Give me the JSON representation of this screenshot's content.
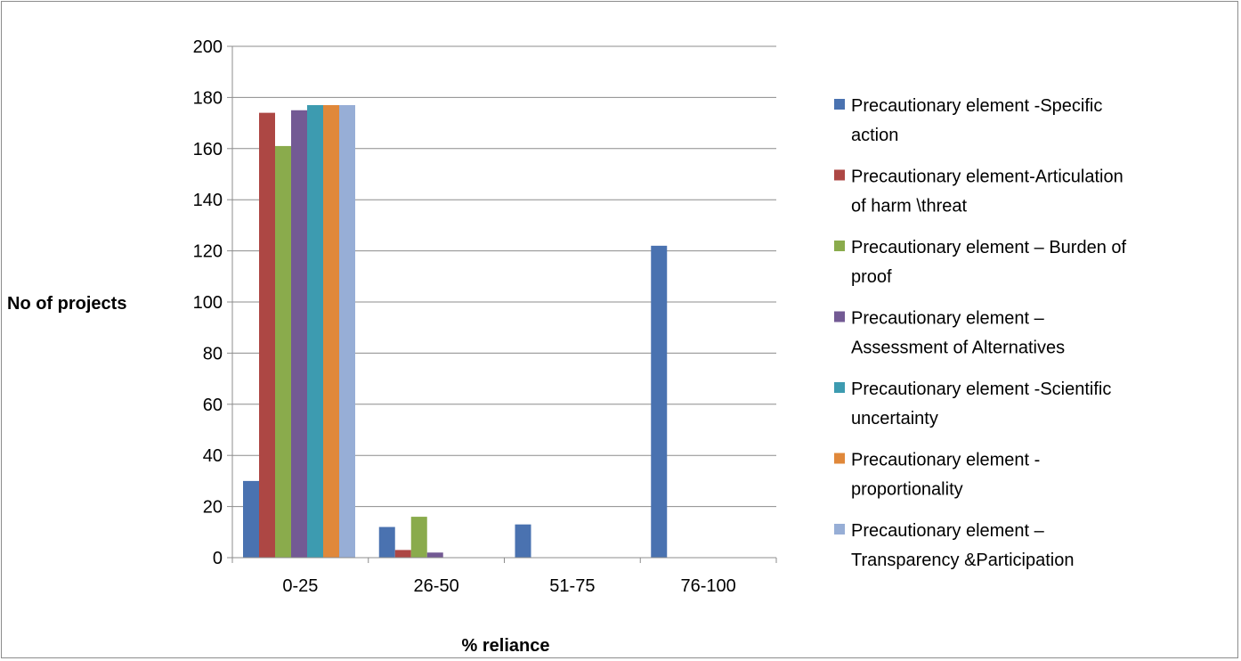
{
  "chart_data": {
    "type": "bar",
    "title": "",
    "xlabel": "% reliance",
    "ylabel": "No of projects",
    "ylim": [
      0,
      200
    ],
    "yticks": [
      0,
      20,
      40,
      60,
      80,
      100,
      120,
      140,
      160,
      180,
      200
    ],
    "categories": [
      "0-25",
      "26-50",
      "51-75",
      "76-100"
    ],
    "grid": "horizontal",
    "legend_position": "right",
    "series": [
      {
        "name": "Precautionary element -Specific action",
        "legend_lines": [
          "Precautionary element -Specific",
          "action"
        ],
        "color": "#4a72b0",
        "values": [
          30,
          12,
          13,
          122
        ]
      },
      {
        "name": "Precautionary element-Articulation of harm \\threat",
        "legend_lines": [
          "Precautionary element-Articulation",
          "of harm \\threat"
        ],
        "color": "#ad4744",
        "values": [
          174,
          3,
          0,
          0
        ]
      },
      {
        "name": "Precautionary element – Burden of proof",
        "legend_lines": [
          "Precautionary element – Burden of",
          "proof"
        ],
        "color": "#8aab4c",
        "values": [
          161,
          16,
          0,
          0
        ]
      },
      {
        "name": "Precautionary element – Assessment of Alternatives",
        "legend_lines": [
          "Precautionary element –",
          "Assessment of Alternatives"
        ],
        "color": "#735a94",
        "values": [
          175,
          2,
          0,
          0
        ]
      },
      {
        "name": "Precautionary element -Scientific uncertainty",
        "legend_lines": [
          "Precautionary element -Scientific",
          "uncertainty"
        ],
        "color": "#3d9bb0",
        "values": [
          177,
          0,
          0,
          0
        ]
      },
      {
        "name": "Precautionary element - proportionality",
        "legend_lines": [
          "Precautionary element -",
          "proportionality"
        ],
        "color": "#e0883a",
        "values": [
          177,
          0,
          0,
          0
        ]
      },
      {
        "name": "Precautionary element – Transparency &Participation",
        "legend_lines": [
          "Precautionary element –",
          "Transparency &Participation"
        ],
        "color": "#97aed6",
        "values": [
          177,
          0,
          0,
          0
        ]
      }
    ]
  }
}
